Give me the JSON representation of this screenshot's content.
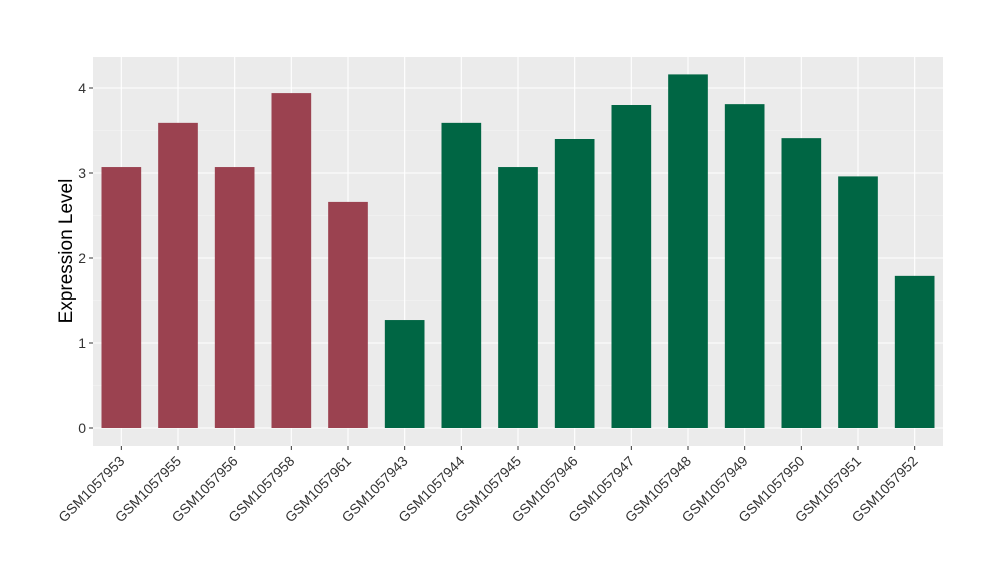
{
  "chart_data": {
    "type": "bar",
    "title": "",
    "xlabel": "",
    "ylabel": "Expression Level",
    "ylim": [
      0,
      4.3
    ],
    "yticks": [
      0,
      1,
      2,
      3,
      4
    ],
    "grid": true,
    "categories": [
      "GSM1057953",
      "GSM1057955",
      "GSM1057956",
      "GSM1057958",
      "GSM1057961",
      "GSM1057943",
      "GSM1057944",
      "GSM1057945",
      "GSM1057946",
      "GSM1057947",
      "GSM1057948",
      "GSM1057949",
      "GSM1057950",
      "GSM1057951",
      "GSM1057952"
    ],
    "values": [
      3.07,
      3.59,
      3.07,
      3.94,
      2.66,
      1.27,
      3.59,
      3.07,
      3.4,
      3.8,
      4.16,
      3.81,
      3.41,
      2.96,
      1.79
    ],
    "bar_colors": [
      "#9b4250",
      "#9b4250",
      "#9b4250",
      "#9b4250",
      "#9b4250",
      "#006644",
      "#006644",
      "#006644",
      "#006644",
      "#006644",
      "#006644",
      "#006644",
      "#006644",
      "#006644",
      "#006644"
    ],
    "panel_background": "#ebebeb"
  }
}
